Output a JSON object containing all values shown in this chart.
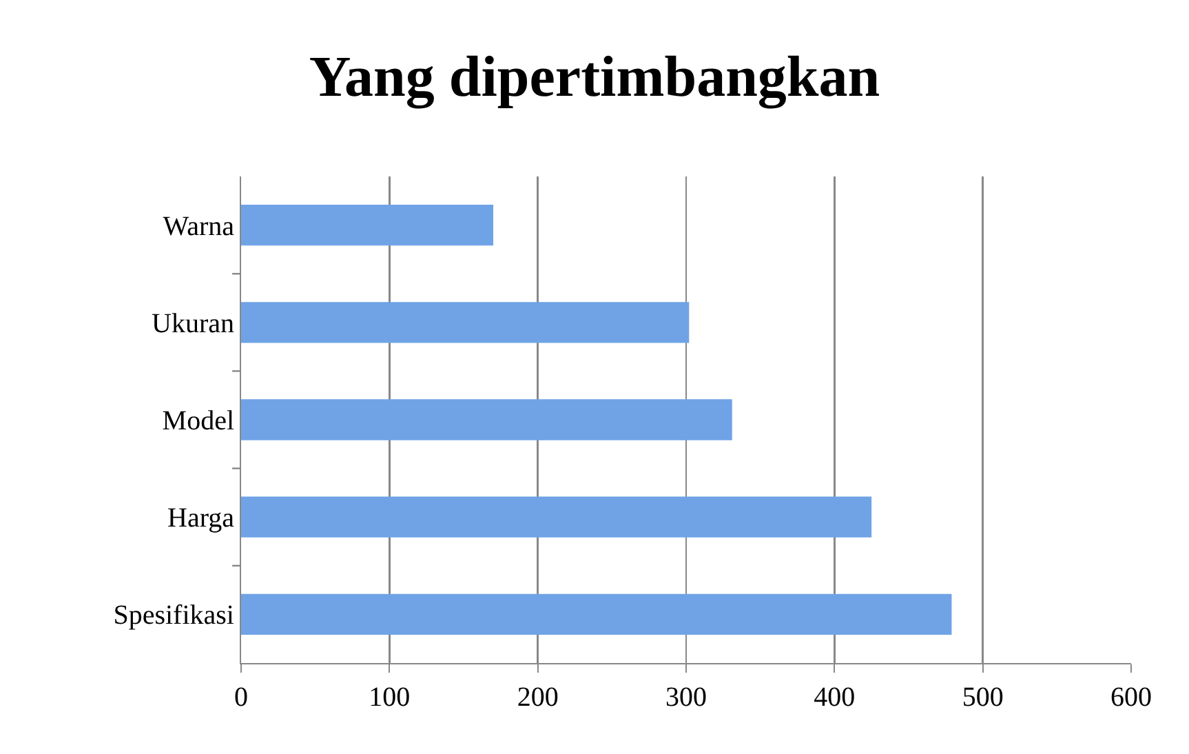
{
  "chart_data": {
    "type": "bar",
    "orientation": "horizontal",
    "title": "Yang dipertimbangkan",
    "categories": [
      "Warna",
      "Ukuran",
      "Model",
      "Harga",
      "Spesifikasi"
    ],
    "values": [
      170,
      302,
      331,
      425,
      479
    ],
    "color": "#6fa3e6",
    "xlim": [
      0,
      600
    ],
    "xticks": [
      0,
      100,
      200,
      300,
      400,
      500,
      600
    ],
    "grid": "x"
  }
}
